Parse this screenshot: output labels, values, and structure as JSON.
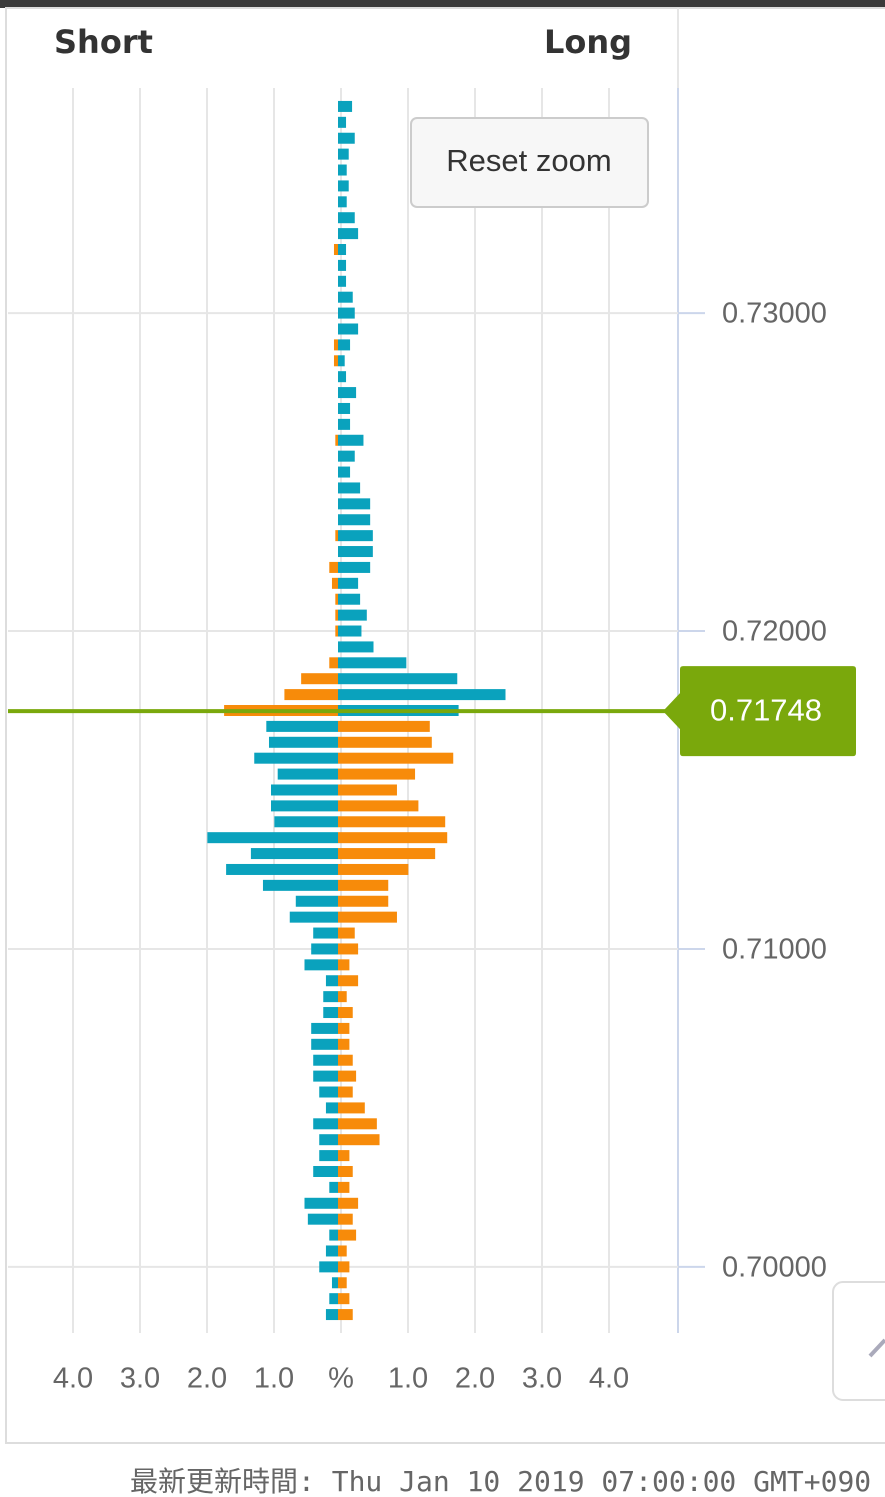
{
  "chart_data": {
    "type": "butterfly-bar",
    "x_label": "%",
    "xlim": [
      0,
      5
    ],
    "xticks": [
      {
        "value": 1,
        "label": "1.0"
      },
      {
        "value": 2,
        "label": "2.0"
      },
      {
        "value": 3,
        "label": "3.0"
      },
      {
        "value": 4,
        "label": "4.0"
      }
    ],
    "ylim": [
      0.69792,
      0.73708
    ],
    "yticks": [
      {
        "value": 0.73,
        "label": "0.73000"
      },
      {
        "value": 0.72,
        "label": "0.72000"
      },
      {
        "value": 0.71,
        "label": "0.71000"
      },
      {
        "value": 0.7,
        "label": "0.70000"
      }
    ],
    "grid": true,
    "current_price": {
      "value": 0.71748,
      "label": "0.71748",
      "color": "#7aa80c"
    },
    "y": [
      0.7365,
      0.736,
      0.7355,
      0.735,
      0.7345,
      0.734,
      0.7335,
      0.733,
      0.7325,
      0.732,
      0.7315,
      0.731,
      0.7305,
      0.73,
      0.7295,
      0.729,
      0.7285,
      0.728,
      0.7275,
      0.727,
      0.7265,
      0.726,
      0.7255,
      0.725,
      0.7245,
      0.724,
      0.7235,
      0.723,
      0.7225,
      0.722,
      0.7215,
      0.721,
      0.7205,
      0.72,
      0.7195,
      0.719,
      0.7185,
      0.718,
      0.7175,
      0.717,
      0.7165,
      0.716,
      0.7155,
      0.715,
      0.7145,
      0.714,
      0.7135,
      0.713,
      0.7125,
      0.712,
      0.7115,
      0.711,
      0.7105,
      0.71,
      0.7095,
      0.709,
      0.7085,
      0.708,
      0.7075,
      0.707,
      0.7065,
      0.706,
      0.7055,
      0.705,
      0.7045,
      0.704,
      0.7035,
      0.703,
      0.7025,
      0.702,
      0.7015,
      0.701,
      0.7005,
      0.7,
      0.6995,
      0.699,
      0.6985
    ],
    "series": [
      {
        "name": "Short",
        "side": "left",
        "color_above": "#f78b0a",
        "color_below": "#0aa2bd",
        "values": [
          0,
          0,
          0,
          0,
          0,
          0,
          0,
          0,
          0,
          0.06,
          0,
          0,
          0,
          0,
          0,
          0.06,
          0.06,
          0,
          0,
          0,
          0,
          0.04,
          0,
          0,
          0,
          0,
          0,
          0.04,
          0,
          0.13,
          0.09,
          0.04,
          0.04,
          0.04,
          0,
          0.13,
          0.55,
          0.8,
          1.7,
          1.07,
          1.03,
          1.25,
          0.9,
          1.0,
          1.0,
          0.95,
          1.95,
          1.3,
          1.67,
          1.12,
          0.63,
          0.72,
          0.37,
          0.4,
          0.5,
          0.18,
          0.22,
          0.22,
          0.4,
          0.4,
          0.37,
          0.37,
          0.28,
          0.18,
          0.37,
          0.28,
          0.28,
          0.37,
          0.13,
          0.5,
          0.45,
          0.13,
          0.18,
          0.28,
          0.09,
          0.13,
          0.18
        ]
      },
      {
        "name": "Long",
        "side": "right",
        "color_above": "#0aa2bd",
        "color_below": "#f78b0a",
        "values": [
          0.21,
          0.12,
          0.25,
          0.16,
          0.13,
          0.16,
          0.13,
          0.25,
          0.3,
          0.12,
          0.12,
          0.12,
          0.22,
          0.25,
          0.3,
          0.18,
          0.1,
          0.12,
          0.27,
          0.18,
          0.18,
          0.38,
          0.25,
          0.18,
          0.33,
          0.48,
          0.48,
          0.52,
          0.52,
          0.48,
          0.3,
          0.33,
          0.43,
          0.35,
          0.53,
          1.02,
          1.78,
          2.5,
          1.8,
          1.37,
          1.4,
          1.72,
          1.15,
          0.88,
          1.2,
          1.6,
          1.63,
          1.45,
          1.05,
          0.75,
          0.75,
          0.88,
          0.25,
          0.3,
          0.17,
          0.3,
          0.13,
          0.22,
          0.17,
          0.17,
          0.22,
          0.27,
          0.22,
          0.4,
          0.58,
          0.62,
          0.17,
          0.22,
          0.17,
          0.3,
          0.22,
          0.27,
          0.13,
          0.17,
          0.13,
          0.17,
          0.22
        ]
      }
    ]
  },
  "reset_button": "Reset zoom",
  "footer": "最新更新時間: Thu Jan 10 2019 07:00:00 GMT+090"
}
